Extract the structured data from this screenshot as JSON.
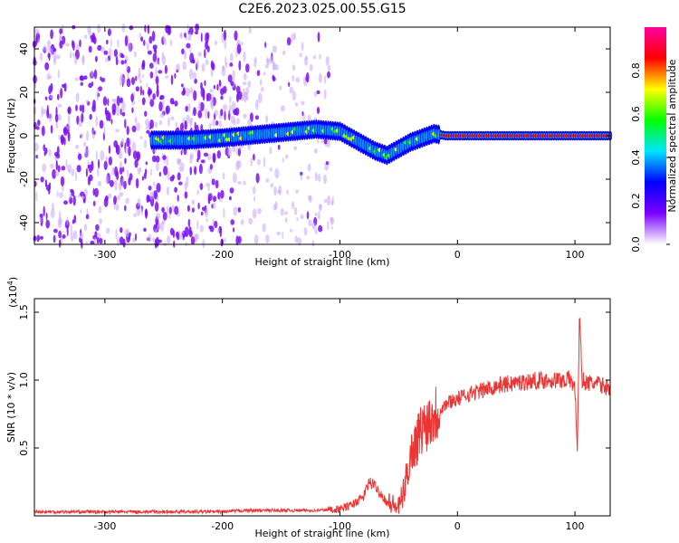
{
  "figure": {
    "title": "C2E6.2023.025.00.55.G15"
  },
  "chart_data": [
    {
      "type": "heatmap",
      "xlabel": "Height of straight line (km)",
      "ylabel": "Frequency (Hz)",
      "xlim": [
        -360,
        130
      ],
      "ylim": [
        -50,
        50
      ],
      "xticks": [
        -300,
        -200,
        -100,
        0,
        100
      ],
      "yticks": [
        -40,
        -20,
        0,
        20,
        40
      ],
      "colorbar": {
        "label": "Normalized spectral amplitude",
        "range": [
          0,
          1
        ],
        "ticks": [
          0.0,
          0.2,
          0.4,
          0.6,
          0.8
        ],
        "colormap": [
          "#ffffff",
          "#7a00ff",
          "#0000ff",
          "#00e5ff",
          "#00ff00",
          "#ffff00",
          "#ff0000",
          "#ff00a0"
        ]
      },
      "ridge": {
        "x": [
          -260,
          -230,
          -200,
          -180,
          -160,
          -140,
          -120,
          -100,
          -90,
          -80,
          -70,
          -60,
          -50,
          -40,
          -30,
          -20,
          -10,
          0,
          50,
          100,
          130
        ],
        "y": [
          -2,
          -2,
          -1,
          0,
          1,
          2,
          3,
          2,
          -1,
          -4,
          -7,
          -9,
          -6,
          -3,
          -1,
          1,
          0,
          0,
          0,
          0,
          0
        ]
      },
      "grid": false
    },
    {
      "type": "line",
      "xlabel": "Height of straight line (km)",
      "ylabel": "SNR (10 * v/v)",
      "y_multiplier_label": "(x10",
      "y_multiplier_exp": "4",
      "y_multiplier_close": ")",
      "xlim": [
        -360,
        130
      ],
      "ylim": [
        0,
        1.6
      ],
      "xticks": [
        -300,
        -200,
        -100,
        0,
        100
      ],
      "yticks": [
        0.5,
        1.0,
        1.5
      ],
      "line_color": "#ee3333",
      "series": [
        {
          "x": [
            -360,
            -300,
            -250,
            -200,
            -180,
            -150,
            -120,
            -100,
            -90,
            -80,
            -75,
            -70,
            -60,
            -50,
            -45,
            -40,
            -35,
            -30,
            -25,
            -20,
            -15,
            -10,
            -5,
            0,
            10,
            20,
            30,
            40,
            50,
            60,
            70,
            80,
            90,
            95,
            100,
            102,
            104,
            106,
            110,
            120,
            130
          ],
          "y": [
            0.03,
            0.03,
            0.03,
            0.03,
            0.04,
            0.04,
            0.04,
            0.05,
            0.08,
            0.14,
            0.25,
            0.22,
            0.1,
            0.06,
            0.2,
            0.45,
            0.55,
            0.65,
            0.7,
            0.75,
            0.78,
            0.82,
            0.85,
            0.86,
            0.9,
            0.92,
            0.95,
            0.97,
            0.98,
            0.99,
            1.0,
            1.0,
            1.0,
            1.01,
            0.95,
            0.5,
            1.5,
            1.0,
            0.98,
            0.97,
            0.94
          ]
        }
      ],
      "grid": false
    }
  ]
}
